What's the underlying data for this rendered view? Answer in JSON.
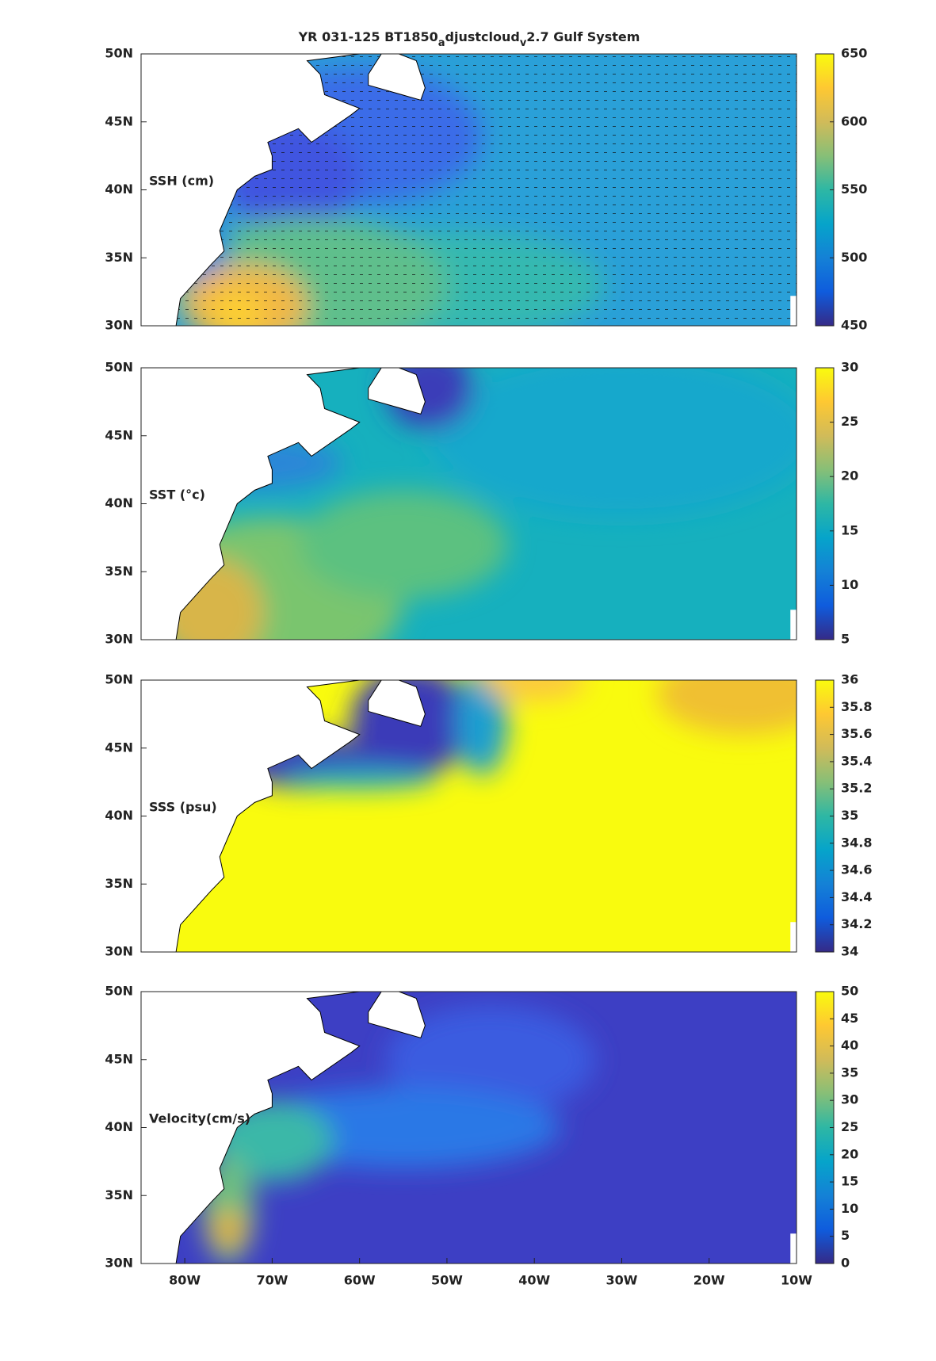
{
  "title_parts": [
    "YR 031-125 BT1850",
    "a",
    "djustcloud",
    "v",
    "2.7 Gulf System"
  ],
  "chart_data": [
    {
      "type": "heatmap",
      "label": "SSH (cm)",
      "xlim": [
        -85,
        -10
      ],
      "ylim": [
        30,
        50
      ],
      "yticks": [
        {
          "value": 30,
          "label": "30N"
        },
        {
          "value": 35,
          "label": "35N"
        },
        {
          "value": 40,
          "label": "40N"
        },
        {
          "value": 45,
          "label": "45N"
        },
        {
          "value": 50,
          "label": "50N"
        }
      ],
      "clim": [
        450,
        650
      ],
      "cticks": [
        450,
        500,
        550,
        600,
        650
      ]
    },
    {
      "type": "heatmap",
      "label": "SST (°c)",
      "xlim": [
        -85,
        -10
      ],
      "ylim": [
        30,
        50
      ],
      "yticks": [
        {
          "value": 30,
          "label": "30N"
        },
        {
          "value": 35,
          "label": "35N"
        },
        {
          "value": 40,
          "label": "40N"
        },
        {
          "value": 45,
          "label": "45N"
        },
        {
          "value": 50,
          "label": "50N"
        }
      ],
      "clim": [
        5,
        30
      ],
      "cticks": [
        5,
        10,
        15,
        20,
        25,
        30
      ]
    },
    {
      "type": "heatmap",
      "label": "SSS (psu)",
      "xlim": [
        -85,
        -10
      ],
      "ylim": [
        30,
        50
      ],
      "yticks": [
        {
          "value": 30,
          "label": "30N"
        },
        {
          "value": 35,
          "label": "35N"
        },
        {
          "value": 40,
          "label": "40N"
        },
        {
          "value": 45,
          "label": "45N"
        },
        {
          "value": 50,
          "label": "50N"
        }
      ],
      "clim": [
        34,
        36
      ],
      "cticks": [
        34,
        34.2,
        34.4,
        34.6,
        34.8,
        35,
        35.2,
        35.4,
        35.6,
        35.8,
        36
      ]
    },
    {
      "type": "heatmap",
      "label": "Velocity(cm/s)",
      "xlim": [
        -85,
        -10
      ],
      "ylim": [
        30,
        50
      ],
      "yticks": [
        {
          "value": 30,
          "label": "30N"
        },
        {
          "value": 35,
          "label": "35N"
        },
        {
          "value": 40,
          "label": "40N"
        },
        {
          "value": 45,
          "label": "45N"
        },
        {
          "value": 50,
          "label": "50N"
        }
      ],
      "xticks": [
        {
          "value": -80,
          "label": "80W"
        },
        {
          "value": -70,
          "label": "70W"
        },
        {
          "value": -60,
          "label": "60W"
        },
        {
          "value": -50,
          "label": "50W"
        },
        {
          "value": -40,
          "label": "40W"
        },
        {
          "value": -30,
          "label": "30W"
        },
        {
          "value": -20,
          "label": "20W"
        },
        {
          "value": -10,
          "label": "10W"
        }
      ],
      "clim": [
        0,
        50
      ],
      "cticks": [
        0,
        5,
        10,
        15,
        20,
        25,
        30,
        35,
        40,
        45,
        50
      ]
    }
  ]
}
